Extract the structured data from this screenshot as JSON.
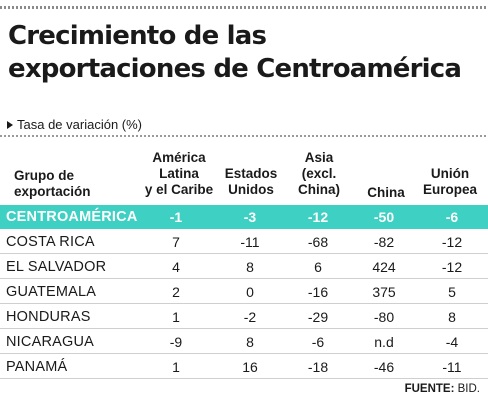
{
  "title_line1": "Crecimiento de las",
  "title_line2": "exportaciones de Centroamérica",
  "subtitle": "Tasa de variación (%)",
  "headers": {
    "group": [
      "Grupo de",
      "exportación"
    ],
    "latam": [
      "América",
      "Latina",
      "y el Caribe"
    ],
    "usa": [
      "Estados",
      "Unidos"
    ],
    "asia": [
      "Asia",
      "(excl.",
      "China)"
    ],
    "china": [
      "China"
    ],
    "eu": [
      "Unión",
      "Europea"
    ]
  },
  "rows": [
    {
      "name": "CENTROAMÉRICA",
      "latam": "-1",
      "usa": "-3",
      "asia": "-12",
      "china": "-50",
      "eu": "-6"
    },
    {
      "name": "COSTA RICA",
      "latam": "7",
      "usa": "-11",
      "asia": "-68",
      "china": "-82",
      "eu": "-12"
    },
    {
      "name": "EL SALVADOR",
      "latam": "4",
      "usa": "8",
      "asia": "6",
      "china": "424",
      "eu": "-12"
    },
    {
      "name": "GUATEMALA",
      "latam": "2",
      "usa": "0",
      "asia": "-16",
      "china": "375",
      "eu": "5"
    },
    {
      "name": "HONDURAS",
      "latam": "1",
      "usa": "-2",
      "asia": "-29",
      "china": "-80",
      "eu": "8"
    },
    {
      "name": "NICARAGUA",
      "latam": "-9",
      "usa": "8",
      "asia": "-6",
      "china": "n.d",
      "eu": "-4"
    },
    {
      "name": "PANAMÁ",
      "latam": "1",
      "usa": "16",
      "asia": "-18",
      "china": "-46",
      "eu": "-11"
    }
  ],
  "source_label": "FUENTE:",
  "source_value": "BID.",
  "colors": {
    "highlight": "#3ed0c2"
  }
}
